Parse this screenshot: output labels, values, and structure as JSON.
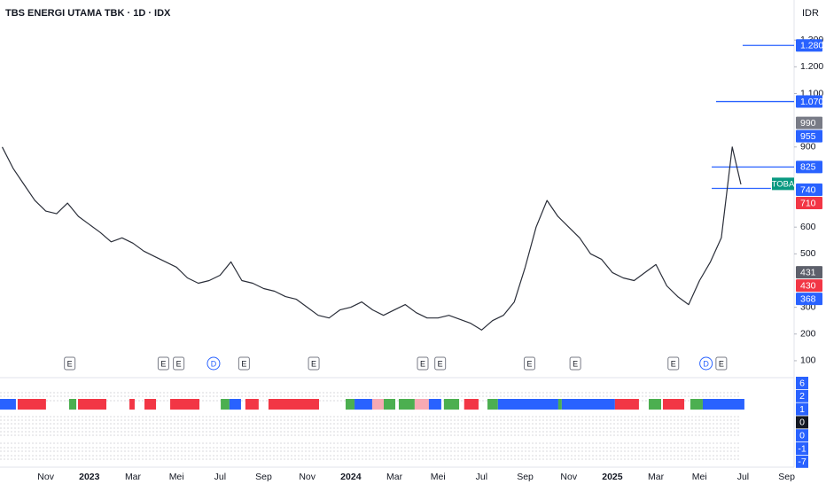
{
  "header": {
    "title": "TBS ENERGI UTAMA TBK · 1D · IDX",
    "currency": "IDR"
  },
  "chart_data": {
    "type": "line",
    "color": "#2a2e39",
    "x": [
      0,
      0.5,
      1,
      1.5,
      2,
      2.5,
      3,
      3.5,
      4,
      4.5,
      5,
      5.5,
      6,
      6.5,
      7,
      7.5,
      8,
      8.5,
      9,
      9.5,
      10,
      10.5,
      11,
      11.5,
      12,
      12.5,
      13,
      13.5,
      14,
      14.5,
      15,
      15.5,
      16,
      16.5,
      17,
      17.5,
      18,
      18.5,
      19,
      19.5,
      20,
      20.5,
      21,
      21.5,
      22,
      22.5,
      23,
      23.5,
      24,
      24.5,
      25,
      25.5,
      26,
      26.5,
      27,
      27.5,
      28,
      28.5,
      29,
      29.5,
      30,
      30.5,
      31,
      31.5,
      32,
      32.5,
      33,
      33.5,
      33.9
    ],
    "values": [
      900,
      820,
      760,
      700,
      660,
      650,
      690,
      640,
      610,
      580,
      545,
      560,
      540,
      510,
      490,
      470,
      450,
      410,
      390,
      400,
      420,
      470,
      400,
      390,
      370,
      360,
      340,
      330,
      300,
      270,
      260,
      290,
      300,
      320,
      290,
      270,
      290,
      310,
      280,
      260,
      260,
      270,
      255,
      240,
      215,
      250,
      270,
      320,
      450,
      600,
      700,
      640,
      600,
      560,
      500,
      480,
      430,
      410,
      400,
      430,
      460,
      380,
      340,
      310,
      400,
      470,
      560,
      900,
      760
    ],
    "xlim": [
      -0.1,
      36.3
    ],
    "xticks": [
      {
        "value": 2,
        "label": "Nov"
      },
      {
        "value": 4,
        "label": "2023"
      },
      {
        "value": 6,
        "label": "Mar"
      },
      {
        "value": 8,
        "label": "Mei"
      },
      {
        "value": 10,
        "label": "Jul"
      },
      {
        "value": 12,
        "label": "Sep"
      },
      {
        "value": 14,
        "label": "Nov"
      },
      {
        "value": 16,
        "label": "2024"
      },
      {
        "value": 18,
        "label": "Mar"
      },
      {
        "value": 20,
        "label": "Mei"
      },
      {
        "value": 22,
        "label": "Jul"
      },
      {
        "value": 24,
        "label": "Sep"
      },
      {
        "value": 26,
        "label": "Nov"
      },
      {
        "value": 28,
        "label": "2025"
      },
      {
        "value": 30,
        "label": "Mar"
      },
      {
        "value": 32,
        "label": "Mei"
      },
      {
        "value": 34,
        "label": "Jul"
      },
      {
        "value": 36,
        "label": "Sep"
      }
    ],
    "ylim": [
      40,
      1450
    ],
    "yticks": [
      100,
      200,
      300,
      500,
      600,
      900,
      {
        "value": 1100,
        "label": "1.100"
      },
      {
        "value": 1200,
        "label": "1.200"
      },
      {
        "value": 1300,
        "label": "1.300"
      }
    ],
    "grid": false,
    "price_badges": [
      {
        "value": 1280,
        "label": "1.280",
        "color": "#2962ff"
      },
      {
        "value": 1070,
        "label": "1.070",
        "color": "#2962ff"
      },
      {
        "value": 990,
        "label": "990",
        "color": "#787b86"
      },
      {
        "value": 955,
        "label": "955",
        "color": "#2962ff"
      },
      {
        "value": 825,
        "label": "825",
        "color": "#2962ff"
      },
      {
        "value": 740,
        "label": "740",
        "color": "#2962ff"
      },
      {
        "value": 710,
        "label": "710",
        "color": "#f23645"
      },
      {
        "value": 431,
        "label": "431",
        "color": "#5d606b"
      },
      {
        "value": 430,
        "label": "430",
        "color": "#f23645"
      },
      {
        "value": 368,
        "label": "368",
        "color": "#2962ff"
      }
    ],
    "symbol_badge": {
      "label": "TOBA",
      "value": 762,
      "color": "#089981"
    },
    "levels": [
      {
        "value": 1280,
        "start": 33.98,
        "color": "#2962ff"
      },
      {
        "value": 1070,
        "start": 32.76,
        "color": "#2962ff"
      },
      {
        "value": 825,
        "start": 32.56,
        "color": "#2962ff"
      },
      {
        "value": 745,
        "start": 32.56,
        "end": 35.28,
        "color": "#2962ff"
      }
    ],
    "events": [
      {
        "label": "E",
        "x": 3.1
      },
      {
        "label": "E",
        "x": 7.4
      },
      {
        "label": "E",
        "x": 8.1
      },
      {
        "label": "D",
        "x": 9.7
      },
      {
        "label": "E",
        "x": 11.1
      },
      {
        "label": "E",
        "x": 14.3
      },
      {
        "label": "E",
        "x": 19.3
      },
      {
        "label": "E",
        "x": 20.1
      },
      {
        "label": "E",
        "x": 24.2
      },
      {
        "label": "E",
        "x": 26.3
      },
      {
        "label": "E",
        "x": 30.8
      },
      {
        "label": "D",
        "x": 32.3
      },
      {
        "label": "E",
        "x": 33.0
      }
    ],
    "signal_strip": [
      {
        "start": -0.1,
        "end": 0.63,
        "color": "#2962ff"
      },
      {
        "start": 0.71,
        "end": 2.01,
        "color": "#f23645"
      },
      {
        "start": 3.07,
        "end": 3.4,
        "color": "#4caf50"
      },
      {
        "start": 3.48,
        "end": 4.78,
        "color": "#f23645"
      },
      {
        "start": 5.84,
        "end": 6.08,
        "color": "#f23645"
      },
      {
        "start": 6.53,
        "end": 7.06,
        "color": "#f23645"
      },
      {
        "start": 7.71,
        "end": 9.05,
        "color": "#f23645"
      },
      {
        "start": 10.03,
        "end": 10.43,
        "color": "#4caf50"
      },
      {
        "start": 10.43,
        "end": 10.96,
        "color": "#2962ff"
      },
      {
        "start": 11.16,
        "end": 11.77,
        "color": "#f23645"
      },
      {
        "start": 12.22,
        "end": 14.54,
        "color": "#f23645"
      },
      {
        "start": 15.76,
        "end": 16.17,
        "color": "#4caf50"
      },
      {
        "start": 16.17,
        "end": 16.98,
        "color": "#2962ff"
      },
      {
        "start": 16.98,
        "end": 17.51,
        "color": "#f7a9b3"
      },
      {
        "start": 17.51,
        "end": 18.04,
        "color": "#4caf50"
      },
      {
        "start": 18.2,
        "end": 18.93,
        "color": "#4caf50"
      },
      {
        "start": 18.93,
        "end": 19.58,
        "color": "#f7a9b3"
      },
      {
        "start": 19.58,
        "end": 20.15,
        "color": "#2962ff"
      },
      {
        "start": 20.27,
        "end": 20.97,
        "color": "#4caf50"
      },
      {
        "start": 21.2,
        "end": 21.86,
        "color": "#f23645"
      },
      {
        "start": 22.27,
        "end": 22.75,
        "color": "#4caf50"
      },
      {
        "start": 22.75,
        "end": 25.52,
        "color": "#2962ff"
      },
      {
        "start": 25.52,
        "end": 25.68,
        "color": "#4caf50"
      },
      {
        "start": 25.68,
        "end": 28.12,
        "color": "#2962ff"
      },
      {
        "start": 28.12,
        "end": 29.22,
        "color": "#f23645"
      },
      {
        "start": 29.67,
        "end": 30.24,
        "color": "#4caf50"
      },
      {
        "start": 30.32,
        "end": 31.3,
        "color": "#f23645"
      },
      {
        "start": 31.58,
        "end": 32.15,
        "color": "#4caf50"
      },
      {
        "start": 32.15,
        "end": 34.06,
        "color": "#2962ff"
      }
    ],
    "oscillator_labels": [
      {
        "value": 6,
        "color": "#2962ff"
      },
      {
        "value": 2,
        "color": "#2962ff"
      },
      {
        "value": 1,
        "color": "#2962ff"
      },
      {
        "value": 0,
        "color": "#131722"
      },
      {
        "value": 0,
        "color": "#2962ff"
      },
      {
        "value": -1,
        "color": "#2962ff"
      },
      {
        "value": -7,
        "color": "#2962ff"
      }
    ]
  }
}
